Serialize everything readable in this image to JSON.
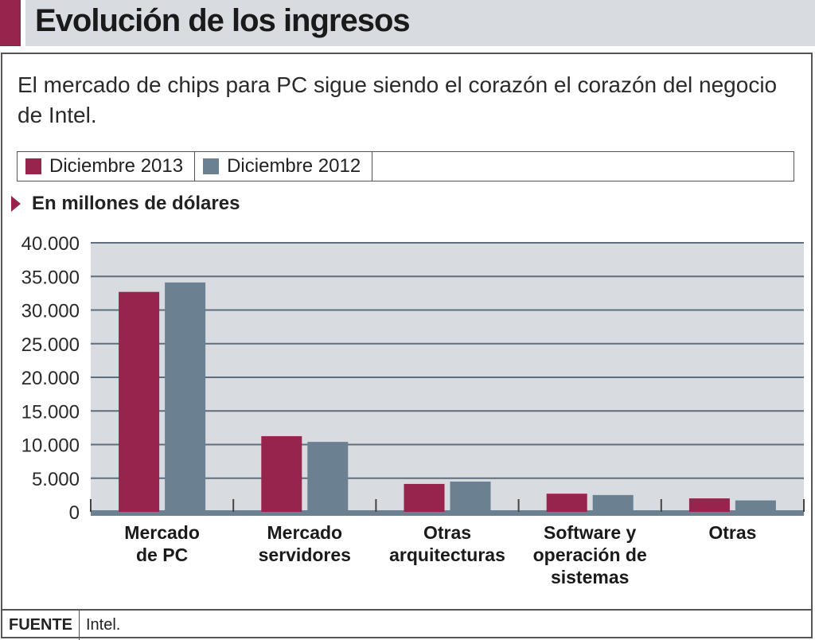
{
  "header": {
    "title": "Evolución de los ingresos",
    "accent_color": "#97244c"
  },
  "subtitle": "El mercado de chips para PC sigue siendo el corazón el corazón del negocio de Intel.",
  "unit_label": "En millones de dólares",
  "source": {
    "label": "FUENTE",
    "value": "Intel."
  },
  "chart_data": {
    "type": "bar",
    "title": "Evolución de los ingresos",
    "ylabel": "En millones de dólares",
    "xlabel": "",
    "ylim": [
      0,
      40000
    ],
    "yticks": [
      0,
      5000,
      10000,
      15000,
      20000,
      25000,
      30000,
      35000,
      40000
    ],
    "ytick_labels": [
      "0",
      "5.000",
      "10.000",
      "15.000",
      "20.000",
      "25.000",
      "30.000",
      "35.000",
      "40.000"
    ],
    "grid": true,
    "legend_position": "top",
    "categories": [
      [
        "Mercado",
        "de PC"
      ],
      [
        "Mercado",
        "servidores"
      ],
      [
        "Otras",
        "arquitecturas"
      ],
      [
        "Software y",
        "operación de",
        "sistemas"
      ],
      [
        "Otras"
      ]
    ],
    "series": [
      {
        "name": "Diciembre 2013",
        "color": "#97244c",
        "values": [
          32700,
          11250,
          4150,
          2700,
          2000
        ]
      },
      {
        "name": "Diciembre 2012",
        "color": "#6b8091",
        "values": [
          34100,
          10400,
          4500,
          2500,
          1700
        ]
      }
    ]
  }
}
